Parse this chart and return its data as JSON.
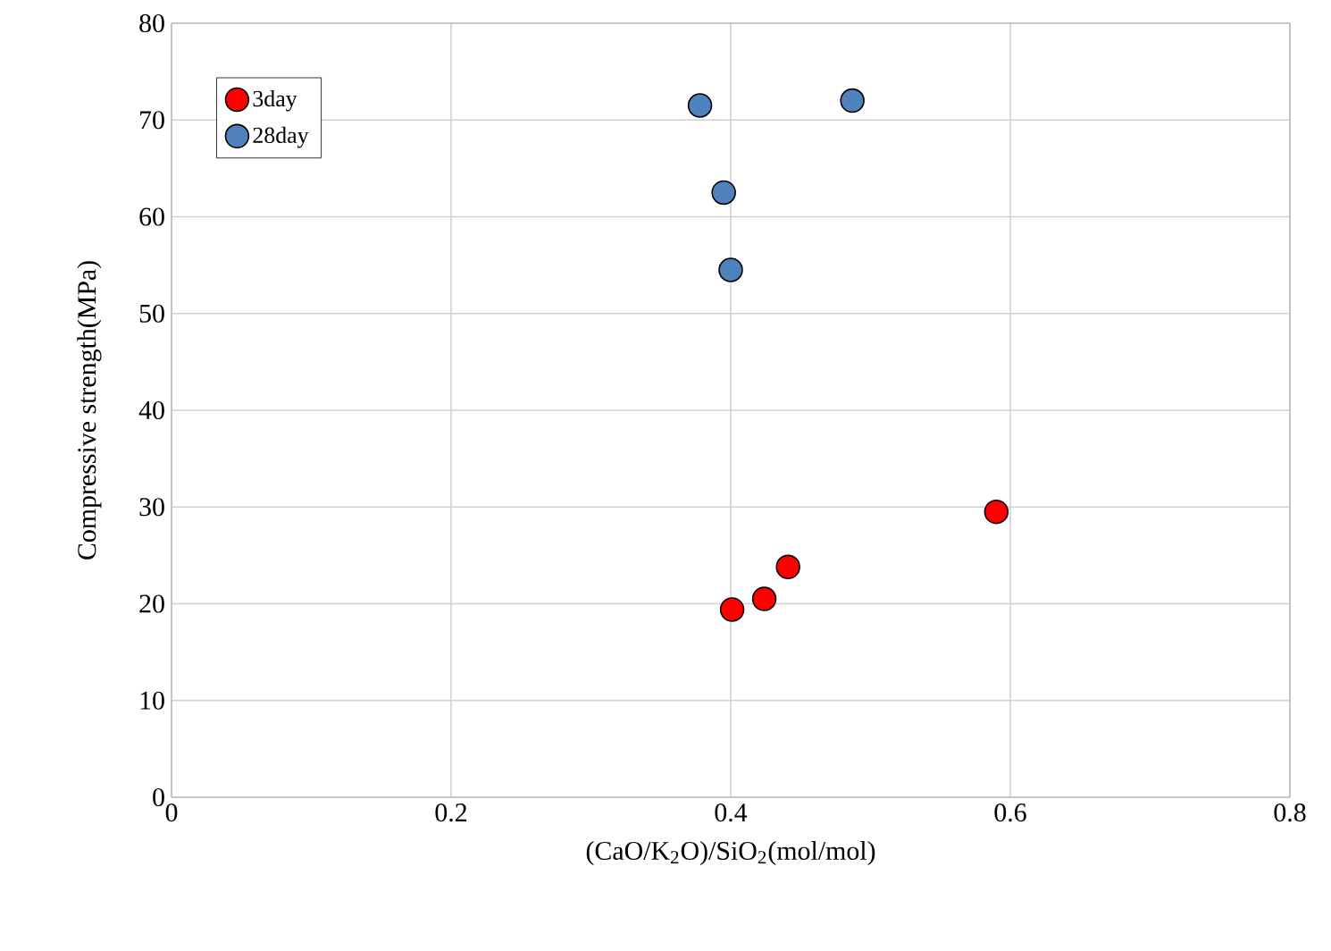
{
  "chart_data": {
    "type": "scatter",
    "xlabel": "(CaO/K$_{2}$O)/SiO$_{2}$(mol/mol)",
    "ylabel": "Compressive strength(MPa)",
    "xlim": [
      0,
      0.8
    ],
    "xticks": [
      0,
      0.2,
      0.4,
      0.6,
      0.8
    ],
    "ylim": [
      0,
      80
    ],
    "yticks": [
      0,
      10,
      20,
      30,
      40,
      50,
      60,
      70,
      80
    ],
    "grid": true,
    "legend": "top left",
    "series": [
      {
        "name": "3day",
        "color": "#ff0000",
        "x": [
          0.401,
          0.424,
          0.441,
          0.59
        ],
        "values": [
          19.4,
          20.5,
          23.8,
          29.5
        ]
      },
      {
        "name": "28day",
        "color": "#4f81bd",
        "x": [
          0.378,
          0.487,
          0.395,
          0.4
        ],
        "values": [
          71.5,
          72.0,
          62.5,
          54.5
        ]
      }
    ]
  }
}
